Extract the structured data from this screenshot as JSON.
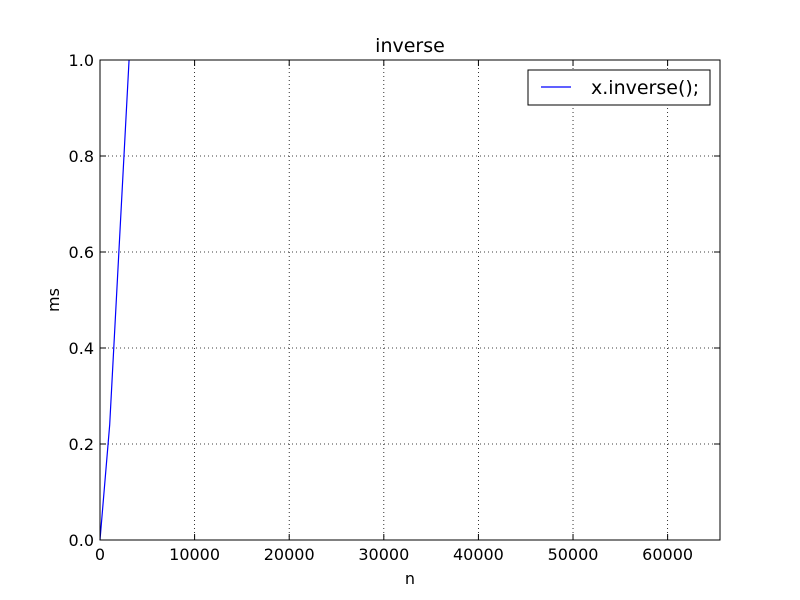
{
  "chart_data": {
    "type": "line",
    "title": "inverse",
    "xlabel": "n",
    "ylabel": "ms",
    "xlim": [
      0,
      65536
    ],
    "ylim": [
      0,
      1.0
    ],
    "xticks": [
      0,
      10000,
      20000,
      30000,
      40000,
      50000,
      60000
    ],
    "xtick_labels": [
      "0",
      "10000",
      "20000",
      "30000",
      "40000",
      "50000",
      "60000"
    ],
    "yticks": [
      0.0,
      0.2,
      0.4,
      0.6,
      0.8,
      1.0
    ],
    "ytick_labels": [
      "0.0",
      "0.2",
      "0.4",
      "0.6",
      "0.8",
      "1.0"
    ],
    "grid": true,
    "legend_position": "top-right",
    "series": [
      {
        "name": "x.inverse();",
        "color": "#0000ff",
        "x": [
          0,
          1024,
          2048,
          3072
        ],
        "y": [
          0.0,
          0.24,
          0.62,
          1.0
        ]
      }
    ]
  }
}
